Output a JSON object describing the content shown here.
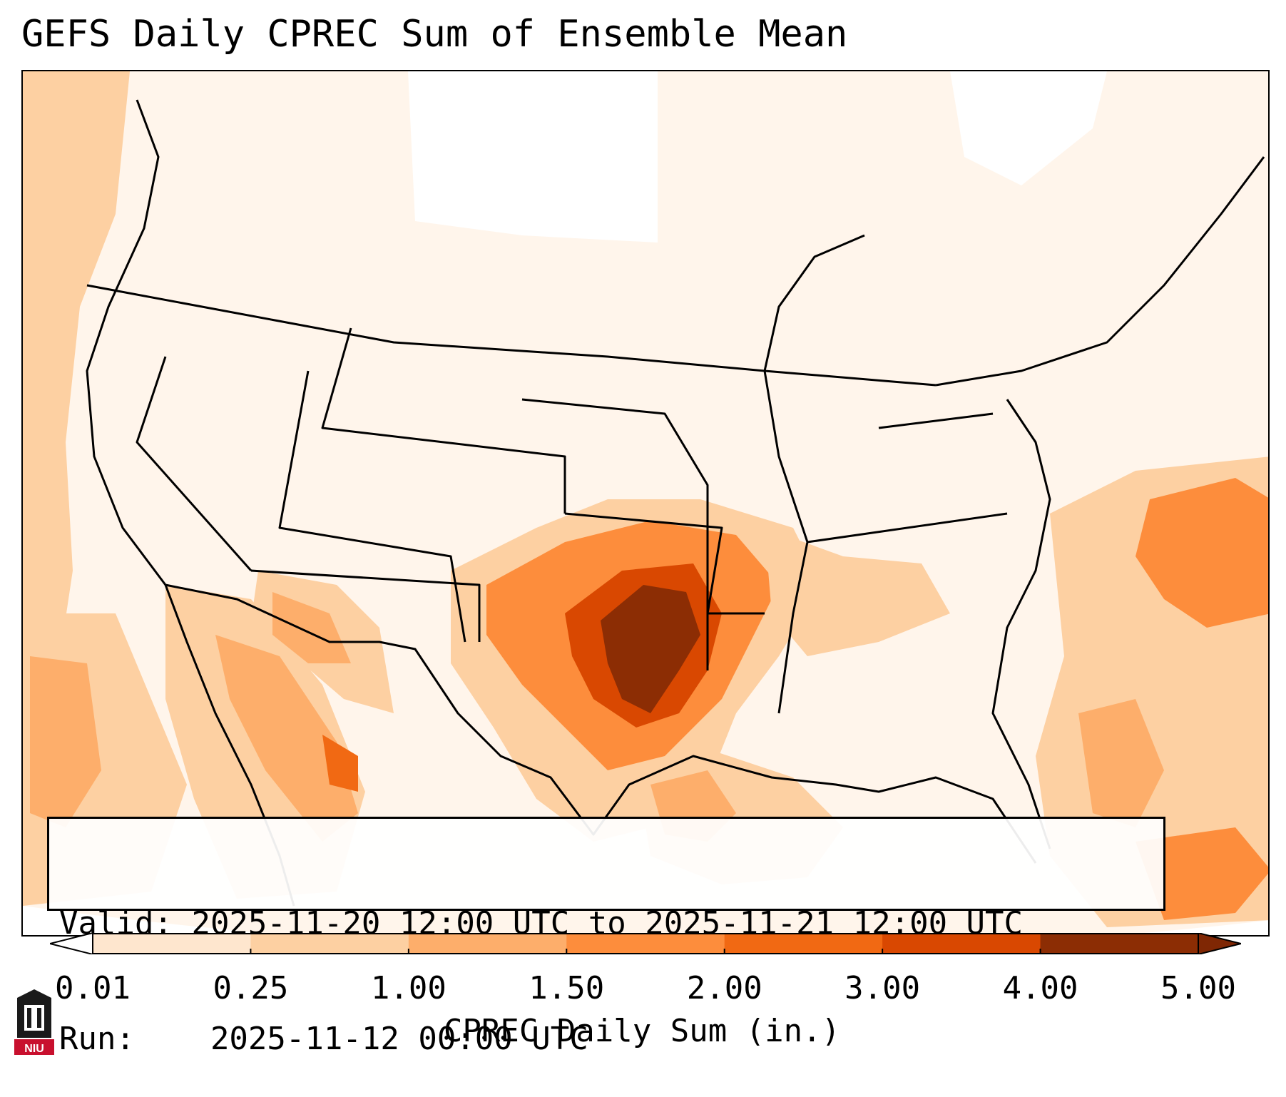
{
  "title": "GEFS Daily CPREC Sum of Ensemble Mean",
  "info": {
    "valid_label": "Valid:",
    "valid_value": "2025-11-20 12:00 UTC to 2025-11-21 12:00 UTC",
    "run_label": "Run:",
    "run_value": "2025-11-12 00:00 UTC"
  },
  "colorbar": {
    "label": "CPREC Daily Sum (in.)",
    "ticks": [
      "0.01",
      "0.25",
      "1.00",
      "1.50",
      "2.00",
      "3.00",
      "4.00",
      "5.00"
    ],
    "colors": [
      "#fff5eb",
      "#fee6ce",
      "#fdd0a2",
      "#fdae6b",
      "#fd8d3c",
      "#f16913",
      "#d94801",
      "#8c2d04"
    ],
    "under_color": "#ffffff",
    "over_color": "#7f2704",
    "extend": "both"
  },
  "logo": {
    "text": "NIU",
    "name": "niu-logo"
  },
  "precip_levels": {
    "none": "#ffffff",
    "trace": "#fff5eb",
    "light": "#fee6ce",
    "moderate": "#fdd0a2",
    "heavy": "#fd8d3c",
    "very_heavy": "#d94801",
    "extreme": "#8c2d04"
  }
}
